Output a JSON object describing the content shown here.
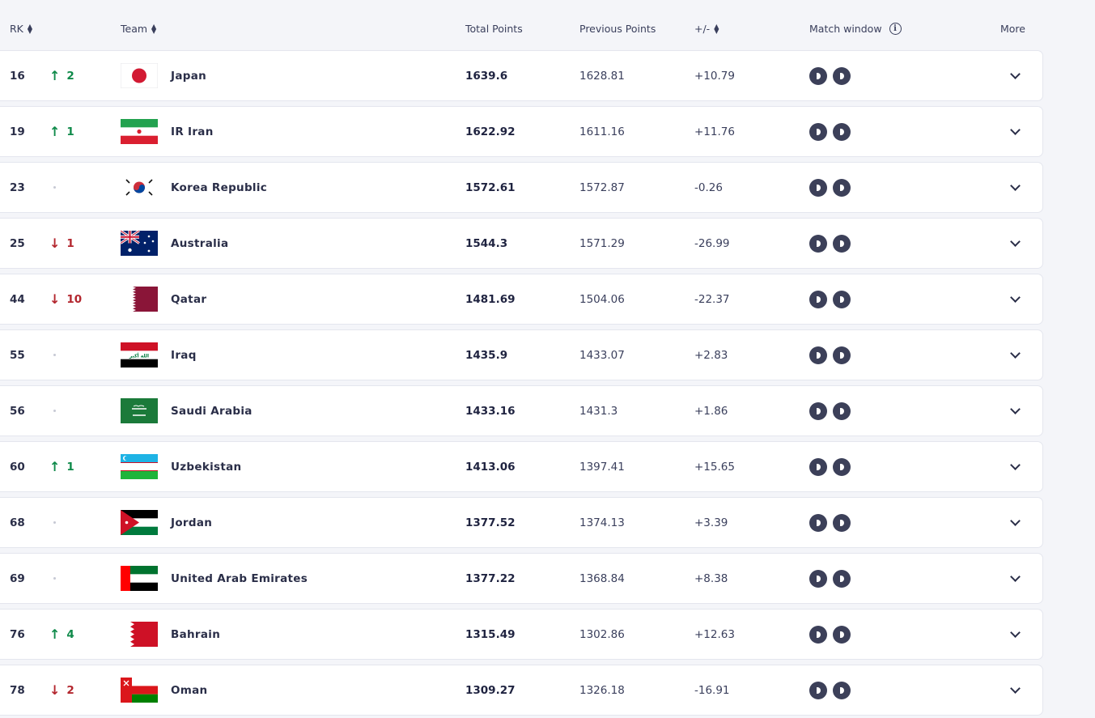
{
  "header": {
    "rk": "RK",
    "team": "Team",
    "total_points": "Total Points",
    "previous_points": "Previous Points",
    "plus_minus": "+/-",
    "match_window": "Match window",
    "more": "More"
  },
  "rows": [
    {
      "rank": "16",
      "move": "up",
      "change": "2",
      "flag": "japan",
      "team": "Japan",
      "total": "1639.6",
      "previous": "1628.81",
      "diff": "+10.79"
    },
    {
      "rank": "19",
      "move": "up",
      "change": "1",
      "flag": "iran",
      "team": "IR Iran",
      "total": "1622.92",
      "previous": "1611.16",
      "diff": "+11.76"
    },
    {
      "rank": "23",
      "move": "same",
      "change": "",
      "flag": "korea",
      "team": "Korea Republic",
      "total": "1572.61",
      "previous": "1572.87",
      "diff": "-0.26"
    },
    {
      "rank": "25",
      "move": "down",
      "change": "1",
      "flag": "australia",
      "team": "Australia",
      "total": "1544.3",
      "previous": "1571.29",
      "diff": "-26.99"
    },
    {
      "rank": "44",
      "move": "down",
      "change": "10",
      "flag": "qatar",
      "team": "Qatar",
      "total": "1481.69",
      "previous": "1504.06",
      "diff": "-22.37"
    },
    {
      "rank": "55",
      "move": "same",
      "change": "",
      "flag": "iraq",
      "team": "Iraq",
      "total": "1435.9",
      "previous": "1433.07",
      "diff": "+2.83"
    },
    {
      "rank": "56",
      "move": "same",
      "change": "",
      "flag": "saudi",
      "team": "Saudi Arabia",
      "total": "1433.16",
      "previous": "1431.3",
      "diff": "+1.86"
    },
    {
      "rank": "60",
      "move": "up",
      "change": "1",
      "flag": "uzbekistan",
      "team": "Uzbekistan",
      "total": "1413.06",
      "previous": "1397.41",
      "diff": "+15.65"
    },
    {
      "rank": "68",
      "move": "same",
      "change": "",
      "flag": "jordan",
      "team": "Jordan",
      "total": "1377.52",
      "previous": "1374.13",
      "diff": "+3.39"
    },
    {
      "rank": "69",
      "move": "same",
      "change": "",
      "flag": "uae",
      "team": "United Arab Emirates",
      "total": "1377.22",
      "previous": "1368.84",
      "diff": "+8.38"
    },
    {
      "rank": "76",
      "move": "up",
      "change": "4",
      "flag": "bahrain",
      "team": "Bahrain",
      "total": "1315.49",
      "previous": "1302.86",
      "diff": "+12.63"
    },
    {
      "rank": "78",
      "move": "down",
      "change": "2",
      "flag": "oman",
      "team": "Oman",
      "total": "1309.27",
      "previous": "1326.18",
      "diff": "-16.91"
    }
  ],
  "colors": {
    "up": "#0f8a4a",
    "down": "#b3262e",
    "match_dot": "#3c4059"
  }
}
